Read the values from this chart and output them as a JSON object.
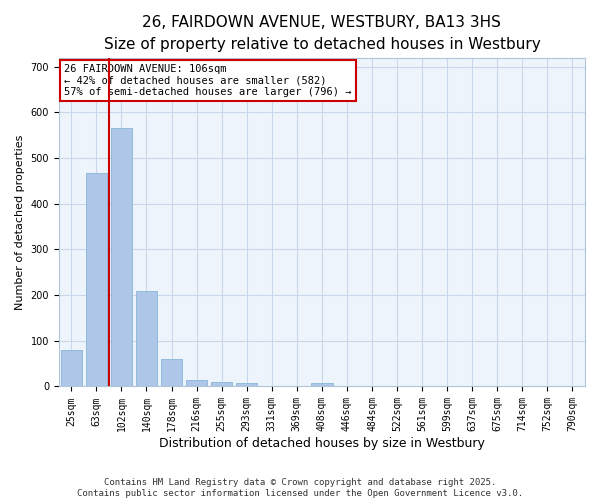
{
  "title": "26, FAIRDOWN AVENUE, WESTBURY, BA13 3HS",
  "subtitle": "Size of property relative to detached houses in Westbury",
  "xlabel": "Distribution of detached houses by size in Westbury",
  "ylabel": "Number of detached properties",
  "categories": [
    "25sqm",
    "63sqm",
    "102sqm",
    "140sqm",
    "178sqm",
    "216sqm",
    "255sqm",
    "293sqm",
    "331sqm",
    "369sqm",
    "408sqm",
    "446sqm",
    "484sqm",
    "522sqm",
    "561sqm",
    "599sqm",
    "637sqm",
    "675sqm",
    "714sqm",
    "752sqm",
    "790sqm"
  ],
  "values": [
    80,
    467,
    565,
    208,
    60,
    15,
    10,
    7,
    0,
    0,
    7,
    0,
    0,
    0,
    0,
    0,
    0,
    0,
    0,
    0,
    0
  ],
  "bar_color": "#aec6e8",
  "bar_edge_color": "#7aafd4",
  "grid_color": "#c8d8ea",
  "background_color": "#eef4fb",
  "vline_color": "#cc0000",
  "vline_x": 1.5,
  "annotation_text": "26 FAIRDOWN AVENUE: 106sqm\n← 42% of detached houses are smaller (582)\n57% of semi-detached houses are larger (796) →",
  "annotation_box_color": "#cc0000",
  "ylim": [
    0,
    720
  ],
  "yticks": [
    0,
    100,
    200,
    300,
    400,
    500,
    600,
    700
  ],
  "footer_text": "Contains HM Land Registry data © Crown copyright and database right 2025.\nContains public sector information licensed under the Open Government Licence v3.0.",
  "title_fontsize": 11,
  "subtitle_fontsize": 9.5,
  "tick_fontsize": 7,
  "ylabel_fontsize": 8,
  "xlabel_fontsize": 9,
  "annotation_fontsize": 7.5
}
